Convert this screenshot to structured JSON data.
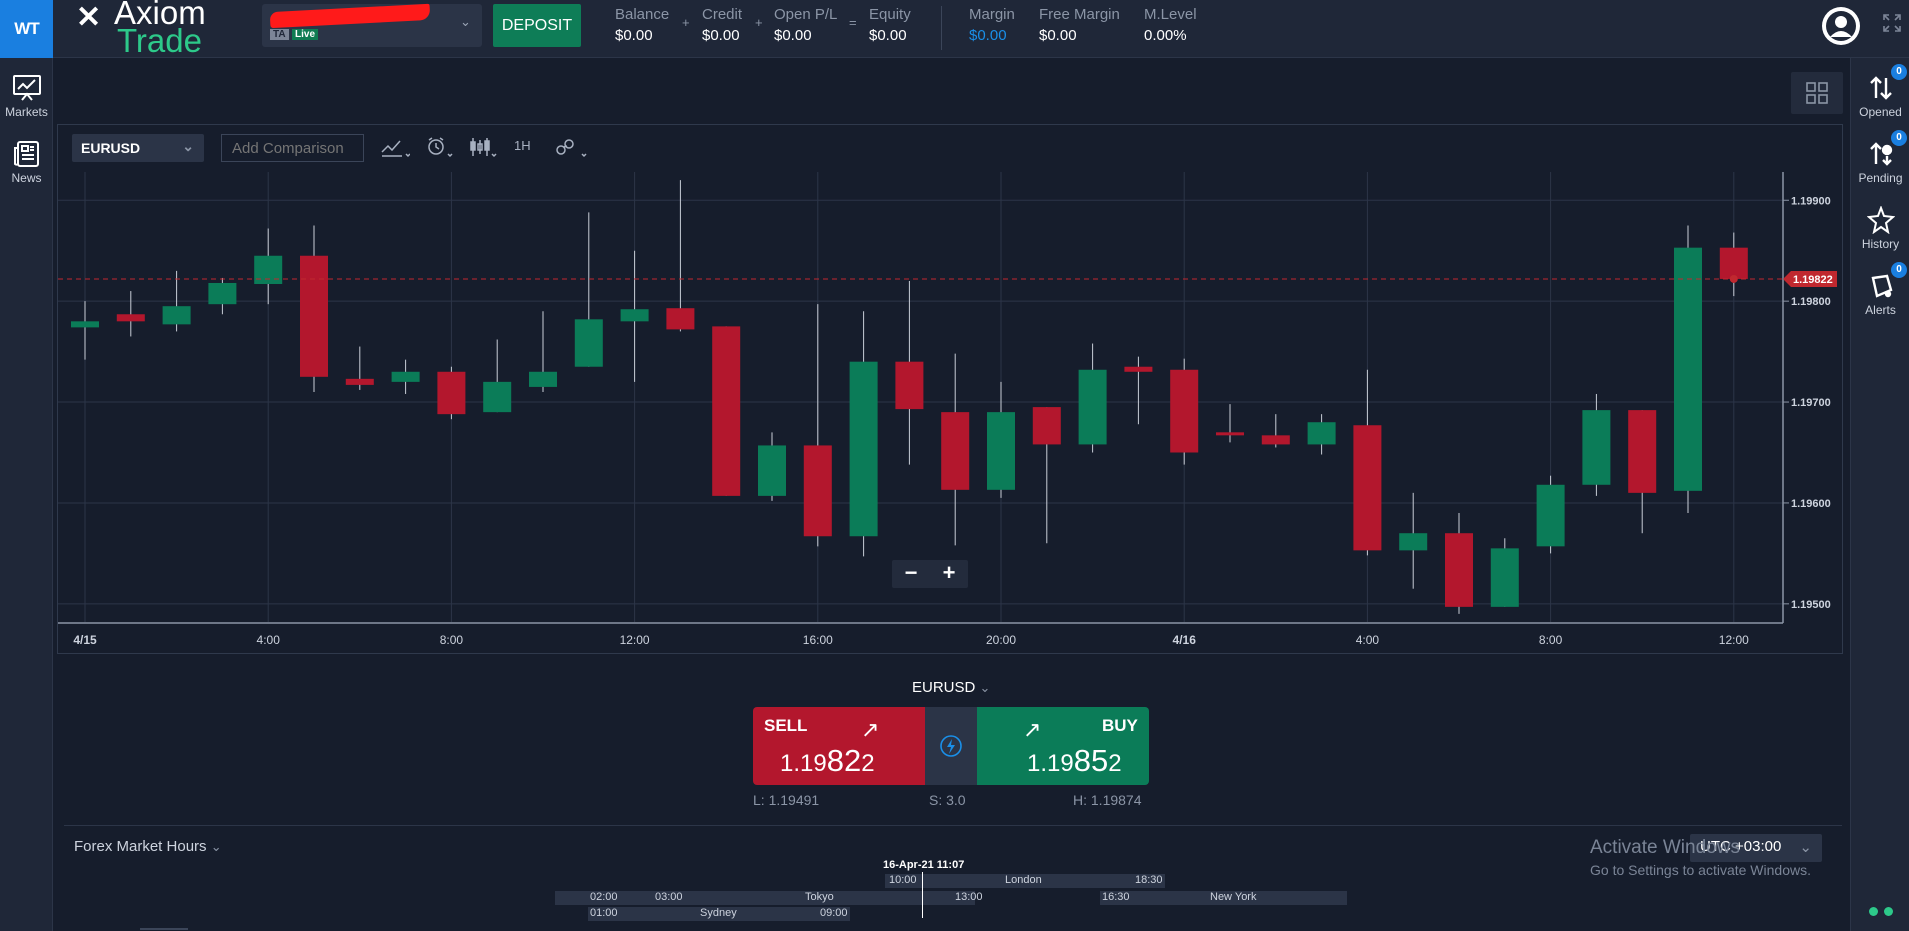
{
  "brand": {
    "logo_text": "WT",
    "mark": "✕",
    "line1": "Axiom",
    "line2": "Trade"
  },
  "account": {
    "badge_ta": "TA",
    "badge_live": "Live"
  },
  "header": {
    "deposit_label": "DEPOSIT",
    "stats": [
      {
        "label": "Balance",
        "value": "$0.00"
      },
      {
        "label": "Credit",
        "value": "$0.00"
      },
      {
        "label": "Open P/L",
        "value": "$0.00"
      },
      {
        "label": "Equity",
        "value": "$0.00"
      },
      {
        "label": "Margin",
        "value": "$0.00"
      },
      {
        "label": "Free Margin",
        "value": "$0.00"
      },
      {
        "label": "M.Level",
        "value": "0.00%"
      }
    ],
    "ops": [
      "+",
      "+",
      "="
    ]
  },
  "left_sidebar": [
    {
      "label": "Markets",
      "icon": "markets-chart-icon"
    },
    {
      "label": "News",
      "icon": "news-icon"
    }
  ],
  "right_sidebar": [
    {
      "label": "Opened",
      "icon": "opened-arrows-icon",
      "count": "0"
    },
    {
      "label": "Pending",
      "icon": "pending-icon",
      "count": "0"
    },
    {
      "label": "History",
      "icon": "history-icon",
      "count": ""
    },
    {
      "label": "Alerts",
      "icon": "alerts-bell-icon",
      "count": "0"
    }
  ],
  "toolbar": {
    "symbol": "EURUSD",
    "comparison_placeholder": "Add Comparison",
    "timeframe": "1H"
  },
  "chart_data": {
    "type": "candlestick",
    "symbol": "EURUSD",
    "timeframe": "1H",
    "y_ticks": [
      "1.19900",
      "1.19800",
      "1.19700",
      "1.19600",
      "1.19500"
    ],
    "ylim": [
      1.19482,
      1.19928
    ],
    "x_ticks": [
      "4/15",
      "4:00",
      "8:00",
      "12:00",
      "16:00",
      "20:00",
      "4/16",
      "4:00",
      "8:00",
      "12:00"
    ],
    "last_price_label": "1.19822",
    "candles": [
      {
        "t": "4/15 00:00",
        "o": 1.19774,
        "h": 1.198,
        "l": 1.19742,
        "c": 1.1978
      },
      {
        "t": "4/15 01:00",
        "o": 1.19787,
        "h": 1.1981,
        "l": 1.19765,
        "c": 1.1978
      },
      {
        "t": "4/15 02:00",
        "o": 1.19777,
        "h": 1.1983,
        "l": 1.1977,
        "c": 1.19795
      },
      {
        "t": "4/15 03:00",
        "o": 1.19797,
        "h": 1.19823,
        "l": 1.19787,
        "c": 1.19818
      },
      {
        "t": "4/15 04:00",
        "o": 1.19817,
        "h": 1.19872,
        "l": 1.19797,
        "c": 1.19845
      },
      {
        "t": "4/15 05:00",
        "o": 1.19845,
        "h": 1.19875,
        "l": 1.1971,
        "c": 1.19725
      },
      {
        "t": "4/15 06:00",
        "o": 1.19723,
        "h": 1.19755,
        "l": 1.19712,
        "c": 1.19717
      },
      {
        "t": "4/15 07:00",
        "o": 1.1972,
        "h": 1.19742,
        "l": 1.19708,
        "c": 1.1973
      },
      {
        "t": "4/15 08:00",
        "o": 1.1973,
        "h": 1.19735,
        "l": 1.19683,
        "c": 1.19688
      },
      {
        "t": "4/15 09:00",
        "o": 1.1969,
        "h": 1.19762,
        "l": 1.1969,
        "c": 1.1972
      },
      {
        "t": "4/15 10:00",
        "o": 1.19715,
        "h": 1.1979,
        "l": 1.1971,
        "c": 1.1973
      },
      {
        "t": "4/15 11:00",
        "o": 1.19735,
        "h": 1.19888,
        "l": 1.19735,
        "c": 1.19782
      },
      {
        "t": "4/15 12:00",
        "o": 1.1978,
        "h": 1.1985,
        "l": 1.1972,
        "c": 1.19792
      },
      {
        "t": "4/15 13:00",
        "o": 1.19793,
        "h": 1.1992,
        "l": 1.1977,
        "c": 1.19772
      },
      {
        "t": "4/15 14:00",
        "o": 1.19775,
        "h": 1.19775,
        "l": 1.19607,
        "c": 1.19607
      },
      {
        "t": "4/15 15:00",
        "o": 1.19607,
        "h": 1.1967,
        "l": 1.19602,
        "c": 1.19657
      },
      {
        "t": "4/15 16:00",
        "o": 1.19657,
        "h": 1.19797,
        "l": 1.19557,
        "c": 1.19567
      },
      {
        "t": "4/15 17:00",
        "o": 1.19567,
        "h": 1.1979,
        "l": 1.19547,
        "c": 1.1974
      },
      {
        "t": "4/15 18:00",
        "o": 1.1974,
        "h": 1.1982,
        "l": 1.19638,
        "c": 1.19693
      },
      {
        "t": "4/15 19:00",
        "o": 1.1969,
        "h": 1.19748,
        "l": 1.19558,
        "c": 1.19613
      },
      {
        "t": "4/15 20:00",
        "o": 1.19613,
        "h": 1.1972,
        "l": 1.19605,
        "c": 1.1969
      },
      {
        "t": "4/15 21:00",
        "o": 1.19695,
        "h": 1.19695,
        "l": 1.1956,
        "c": 1.19658
      },
      {
        "t": "4/15 22:00",
        "o": 1.19658,
        "h": 1.19758,
        "l": 1.1965,
        "c": 1.19732
      },
      {
        "t": "4/15 23:00",
        "o": 1.19735,
        "h": 1.19745,
        "l": 1.19678,
        "c": 1.1973
      },
      {
        "t": "4/16 00:00",
        "o": 1.19732,
        "h": 1.19743,
        "l": 1.19638,
        "c": 1.1965
      },
      {
        "t": "4/16 01:00",
        "o": 1.1967,
        "h": 1.19698,
        "l": 1.1966,
        "c": 1.19667
      },
      {
        "t": "4/16 02:00",
        "o": 1.19667,
        "h": 1.19688,
        "l": 1.19655,
        "c": 1.19658
      },
      {
        "t": "4/16 03:00",
        "o": 1.19658,
        "h": 1.19688,
        "l": 1.19648,
        "c": 1.1968
      },
      {
        "t": "4/16 04:00",
        "o": 1.19677,
        "h": 1.19732,
        "l": 1.19548,
        "c": 1.19553
      },
      {
        "t": "4/16 05:00",
        "o": 1.19553,
        "h": 1.1961,
        "l": 1.19515,
        "c": 1.1957
      },
      {
        "t": "4/16 06:00",
        "o": 1.1957,
        "h": 1.1959,
        "l": 1.1949,
        "c": 1.19497
      },
      {
        "t": "4/16 07:00",
        "o": 1.19497,
        "h": 1.19565,
        "l": 1.19497,
        "c": 1.19555
      },
      {
        "t": "4/16 08:00",
        "o": 1.19557,
        "h": 1.19627,
        "l": 1.1955,
        "c": 1.19618
      },
      {
        "t": "4/16 09:00",
        "o": 1.19618,
        "h": 1.19708,
        "l": 1.19607,
        "c": 1.19692
      },
      {
        "t": "4/16 10:00",
        "o": 1.19692,
        "h": 1.19692,
        "l": 1.1957,
        "c": 1.1961
      },
      {
        "t": "4/16 11:00",
        "o": 1.19612,
        "h": 1.19875,
        "l": 1.1959,
        "c": 1.19853
      },
      {
        "t": "4/16 12:00",
        "o": 1.19853,
        "h": 1.19868,
        "l": 1.19805,
        "c": 1.19822
      }
    ],
    "colors": {
      "up": "#0b7c58",
      "down": "#b3172d",
      "grid": "#2c3548",
      "axis_text": "#cdd3de"
    }
  },
  "trade_panel": {
    "symbol": "EURUSD",
    "sell_label": "SELL",
    "buy_label": "BUY",
    "sell_price_prefix": "1.19",
    "sell_price_pips": "82",
    "sell_price_suffix": "2",
    "buy_price_prefix": "1.19",
    "buy_price_pips": "85",
    "buy_price_suffix": "2",
    "low": "L: 1.19491",
    "spread": "S: 3.0",
    "high": "H: 1.19874"
  },
  "market_hours": {
    "title": "Forex Market Hours",
    "timezone": "UTC +03:00",
    "now": "16-Apr-21 11:07",
    "sessions": {
      "sydney": {
        "name": "Sydney",
        "open": "01:00",
        "close": "09:00"
      },
      "tokyo": {
        "name": "Tokyo",
        "open": "03:00",
        "close": "",
        "pre": "02:00"
      },
      "london": {
        "name": "London",
        "open": "10:00",
        "close": "18:30"
      },
      "newyork": {
        "name": "New York",
        "open": "16:30",
        "pre": "13:00"
      }
    }
  },
  "watermark": {
    "title": "Activate Windows",
    "subtitle": "Go to Settings to activate Windows."
  }
}
